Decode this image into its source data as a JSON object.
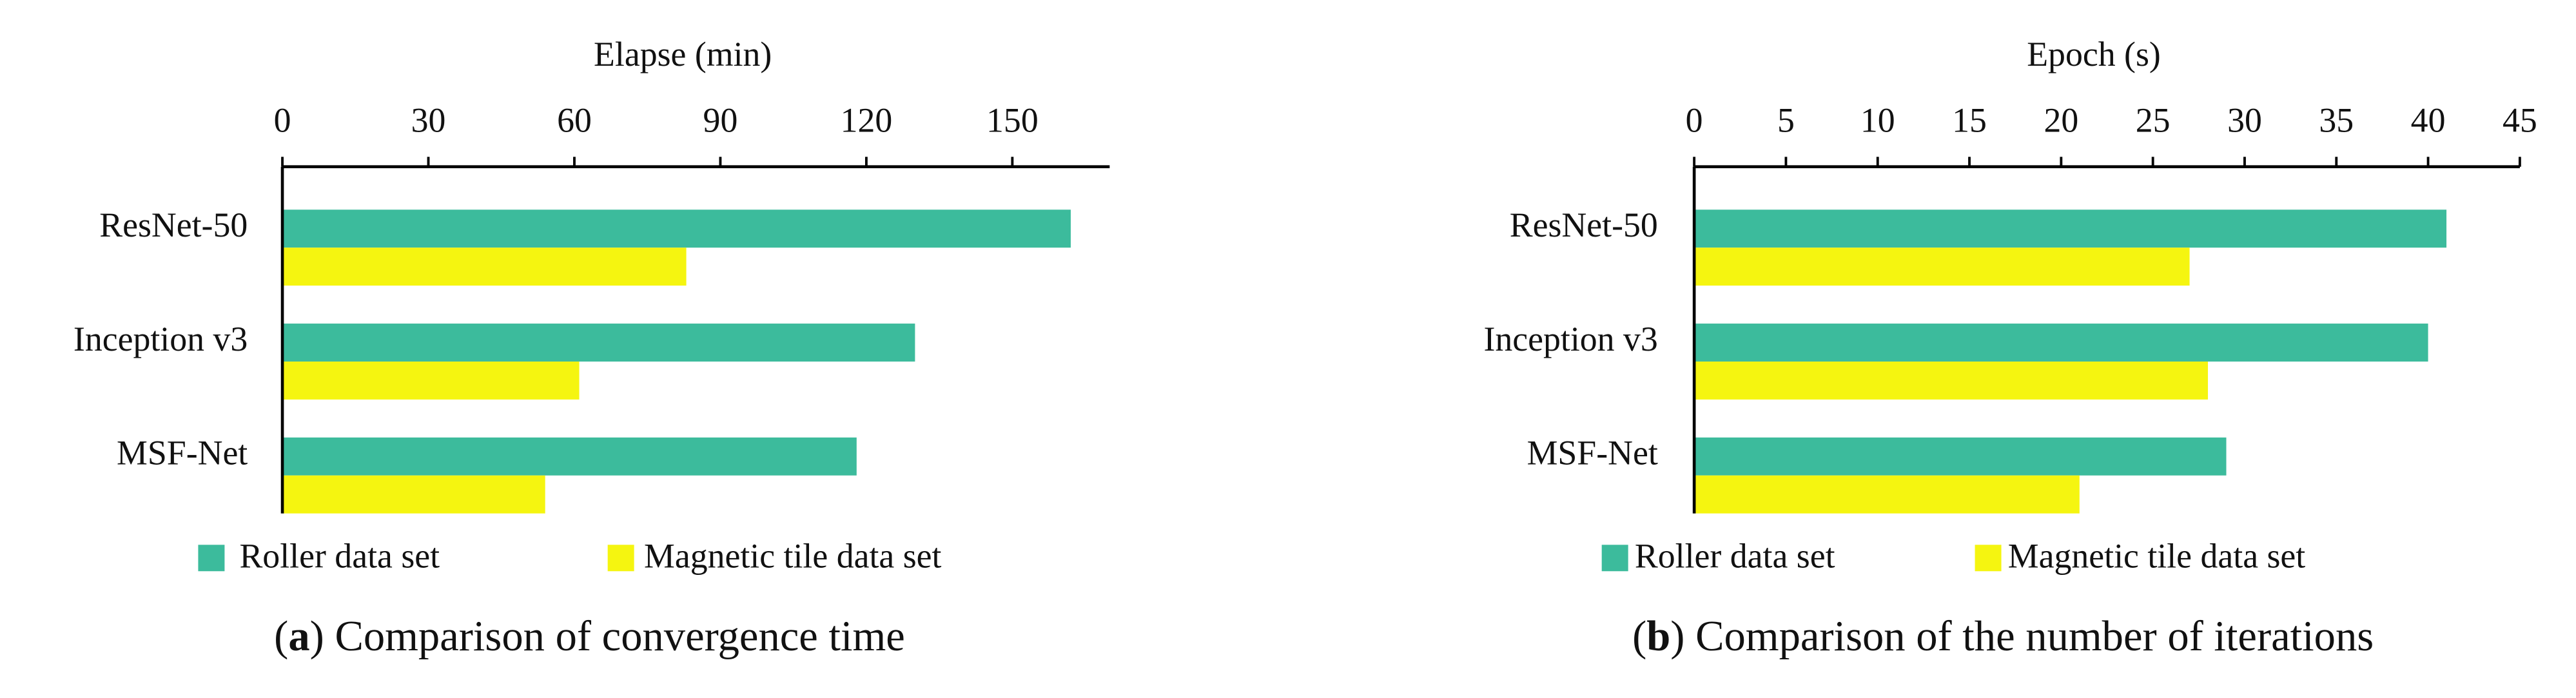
{
  "chart_data": [
    {
      "type": "barh",
      "x_label": "Elapse (min)",
      "categories": [
        "ResNet-50",
        "Inception v3",
        "MSF-Net"
      ],
      "series": [
        {
          "name": "Roller data set",
          "color": "#3cbb9c",
          "values": [
            162,
            130,
            118
          ]
        },
        {
          "name": "Magnetic tile data set",
          "color": "#f5f510",
          "values": [
            83,
            61,
            54
          ]
        }
      ],
      "xlim": [
        0,
        170
      ],
      "xticks": [
        0,
        30,
        60,
        90,
        120,
        150
      ],
      "caption": [
        "(",
        "a",
        ") Comparison of convergence time"
      ]
    },
    {
      "type": "barh",
      "x_label": "Epoch (s)",
      "categories": [
        "ResNet-50",
        "Inception v3",
        "MSF-Net"
      ],
      "series": [
        {
          "name": "Roller data set",
          "color": "#3cbb9c",
          "values": [
            41,
            40,
            29
          ]
        },
        {
          "name": "Magnetic tile data set",
          "color": "#f5f510",
          "values": [
            27,
            28,
            21
          ]
        }
      ],
      "xlim": [
        0,
        45
      ],
      "xticks": [
        0,
        5,
        10,
        15,
        20,
        25,
        30,
        35,
        40,
        45
      ],
      "caption": [
        "(",
        "b",
        ") Comparison of the number of iterations"
      ]
    }
  ]
}
